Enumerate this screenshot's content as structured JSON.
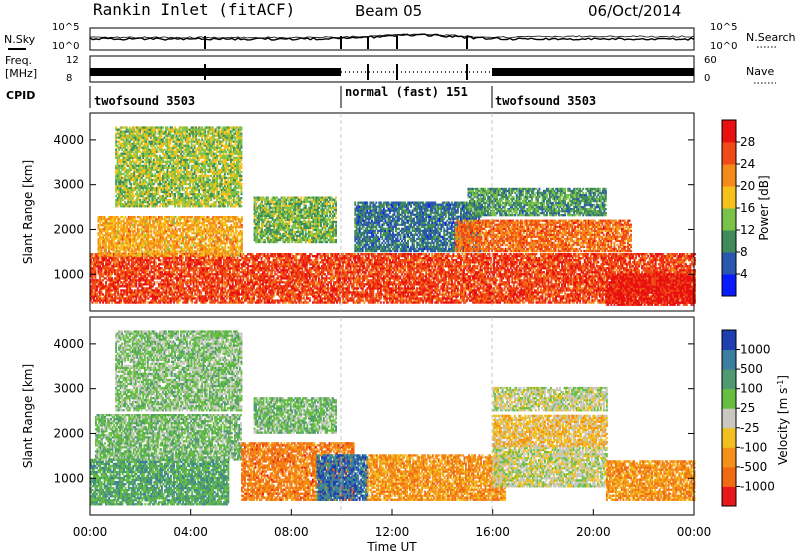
{
  "header": {
    "station": "Rankin Inlet (fitACF)",
    "beam": "Beam 05",
    "date": "06/Oct/2014"
  },
  "noise_panel": {
    "left_label": "N.Sky",
    "left_ticks": [
      "10^5",
      "10^0"
    ],
    "right_label": "N.Search",
    "right_ticks": [
      "10^5",
      "10^0"
    ]
  },
  "freq_panel": {
    "left_label_1": "Freq.",
    "left_label_2": "[MHz]",
    "left_ticks": [
      "12",
      "8"
    ],
    "right_label": "Nave",
    "right_ticks": [
      "60",
      "0"
    ]
  },
  "cpid_panel": {
    "label": "CPID",
    "segments": [
      "twofsound 3503",
      "normal (fast) 151",
      "twofsound 3503"
    ]
  },
  "chart_data": [
    {
      "type": "heatmap",
      "title": "",
      "xlabel": "",
      "ylabel": "Slant Range [km]",
      "x_range_hours": [
        0,
        24
      ],
      "ylim": [
        180,
        4600
      ],
      "y_ticks": [
        1000,
        2000,
        3000,
        4000
      ],
      "colorbar_label": "Power [dB]",
      "colorbar_ticks": [
        "4",
        "8",
        "12",
        "16",
        "20",
        "24",
        "28"
      ],
      "scale_colors": [
        "#0a1aff",
        "#2a56b0",
        "#3f8c5a",
        "#7bc24a",
        "#f6c21a",
        "#f5891a",
        "#f04a16",
        "#e81010"
      ],
      "bands": [
        {
          "t0": 0.0,
          "t1": 24.0,
          "r0": 350,
          "r1": 1450,
          "level": 6.2
        },
        {
          "t0": 0.3,
          "t1": 6.0,
          "r0": 1400,
          "r1": 2300,
          "level": 4.5
        },
        {
          "t0": 1.0,
          "t1": 6.0,
          "r0": 2500,
          "r1": 4300,
          "level": 3.2
        },
        {
          "t0": 6.5,
          "t1": 9.8,
          "r0": 1700,
          "r1": 2700,
          "level": 2.8
        },
        {
          "t0": 10.5,
          "t1": 15.5,
          "r0": 1500,
          "r1": 2600,
          "level": 1.5
        },
        {
          "t0": 14.5,
          "t1": 21.5,
          "r0": 1500,
          "r1": 2200,
          "level": 5.5
        },
        {
          "t0": 15.0,
          "t1": 20.5,
          "r0": 2300,
          "r1": 2900,
          "level": 2.2
        },
        {
          "t0": 20.5,
          "t1": 24.0,
          "r0": 300,
          "r1": 1000,
          "level": 7.0
        }
      ]
    },
    {
      "type": "heatmap",
      "title": "",
      "xlabel": "Time UT",
      "ylabel": "Slant Range [km]",
      "x_range_hours": [
        0,
        24
      ],
      "ylim": [
        180,
        4600
      ],
      "y_ticks": [
        1000,
        2000,
        3000,
        4000
      ],
      "x_ticks": [
        "00:00",
        "04:00",
        "08:00",
        "12:00",
        "16:00",
        "20:00",
        "00:00"
      ],
      "colorbar_label": "Velocity [m s^-1]",
      "colorbar_label_main": "Velocity [m s",
      "colorbar_label_exp": "-1",
      "colorbar_label_end": "]",
      "colorbar_ticks": [
        "1000",
        "500",
        "100",
        "25",
        "-25",
        "-100",
        "-500",
        "-1000"
      ],
      "scale_colors": [
        "#1f3fb0",
        "#3a7ea0",
        "#4f9a70",
        "#66c040",
        "#c8c8c0",
        "#f0c020",
        "#f59018",
        "#f06a14",
        "#e81818"
      ],
      "bands": [
        {
          "t0": 0.0,
          "t1": 5.5,
          "r0": 400,
          "r1": 1400,
          "level": 2.3
        },
        {
          "t0": 0.2,
          "t1": 6.0,
          "r0": 1400,
          "r1": 2400,
          "level": 3.0
        },
        {
          "t0": 1.0,
          "t1": 6.0,
          "r0": 2500,
          "r1": 4300,
          "level": 3.2
        },
        {
          "t0": 6.0,
          "t1": 10.5,
          "r0": 500,
          "r1": 1800,
          "level": 6.5
        },
        {
          "t0": 6.5,
          "t1": 9.8,
          "r0": 2000,
          "r1": 2800,
          "level": 3.0
        },
        {
          "t0": 9.0,
          "t1": 11.0,
          "r0": 500,
          "r1": 1500,
          "level": 0.8
        },
        {
          "t0": 11.0,
          "t1": 16.5,
          "r0": 500,
          "r1": 1500,
          "level": 6.0
        },
        {
          "t0": 16.0,
          "t1": 20.5,
          "r0": 800,
          "r1": 1700,
          "level": 4.0
        },
        {
          "t0": 16.0,
          "t1": 20.5,
          "r0": 1700,
          "r1": 2400,
          "level": 5.0
        },
        {
          "t0": 16.0,
          "t1": 20.5,
          "r0": 2500,
          "r1": 3000,
          "level": 4.0
        },
        {
          "t0": 20.5,
          "t1": 24.0,
          "r0": 500,
          "r1": 1400,
          "level": 6.0
        }
      ]
    }
  ]
}
